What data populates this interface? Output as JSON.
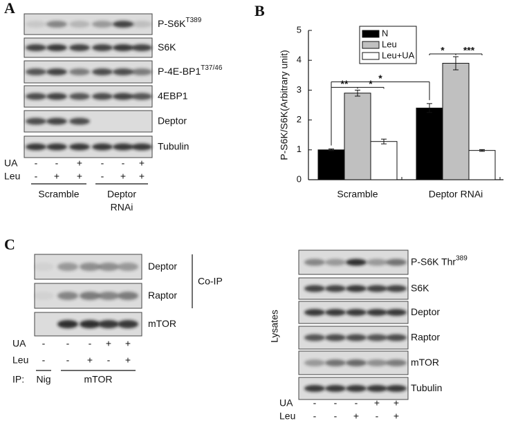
{
  "panel_a": {
    "letter": "A",
    "blots": [
      {
        "name": "P-S6K",
        "sup": "T389"
      },
      {
        "name": "S6K"
      },
      {
        "name": "P-4E-BP1",
        "sup": "T37/46"
      },
      {
        "name": "4EBP1"
      },
      {
        "name": "Deptor"
      },
      {
        "name": "Tubulin"
      }
    ],
    "treatments": [
      {
        "name": "UA",
        "signs": [
          "-",
          "-",
          "+",
          "-",
          "-",
          "+"
        ]
      },
      {
        "name": "Leu",
        "signs": [
          "-",
          "+",
          "+",
          "-",
          "+",
          "+"
        ]
      }
    ],
    "groups": [
      {
        "lines": [
          "Scramble"
        ]
      },
      {
        "lines": [
          "Deptor",
          "RNAi"
        ]
      }
    ]
  },
  "chart_data": {
    "type": "bar",
    "letter": "B",
    "ylabel": "P-S6K/S6K(Arbitrary unit)",
    "categories": [
      "Scramble",
      "Deptor RNAi"
    ],
    "series": [
      {
        "name": "N",
        "color": "#000000",
        "values": [
          1,
          2.4
        ],
        "errors": [
          0.03,
          0.15
        ]
      },
      {
        "name": "Leu",
        "color": "#c0c0c0",
        "values": [
          2.9,
          3.9
        ],
        "errors": [
          0.1,
          0.22
        ]
      },
      {
        "name": "Leu+UA",
        "color": "#ffffff",
        "values": [
          1.28,
          0.98
        ],
        "errors": [
          0.08,
          0.03
        ]
      }
    ],
    "ylim": [
      0,
      5
    ],
    "yticks": [
      0,
      1,
      2,
      3,
      4,
      5
    ],
    "legend": "upper left",
    "significance": [
      {
        "label": "**"
      },
      {
        "label": "*"
      },
      {
        "label": "*"
      },
      {
        "label": "*"
      },
      {
        "label": "***"
      }
    ]
  },
  "panel_c": {
    "letter": "C",
    "co_ip": {
      "blots": [
        {
          "name": "Deptor"
        },
        {
          "name": "Raptor"
        },
        {
          "name": "mTOR"
        }
      ],
      "bracket": "Co-IP",
      "treatments": [
        {
          "name": "UA",
          "signs": [
            "-",
            "-",
            "-",
            "+",
            "+"
          ]
        },
        {
          "name": "Leu",
          "signs": [
            "-",
            "-",
            "+",
            "-",
            "+"
          ]
        }
      ],
      "ip": {
        "label": "IP:",
        "groups": [
          "Nig",
          "mTOR"
        ]
      }
    },
    "lysates": {
      "title": "Lysates",
      "blots": [
        {
          "name": "P-S6K Thr",
          "sup": "389"
        },
        {
          "name": "S6K"
        },
        {
          "name": "Deptor"
        },
        {
          "name": "Raptor"
        },
        {
          "name": "mTOR"
        },
        {
          "name": "Tubulin"
        }
      ],
      "treatments": [
        {
          "name": "UA",
          "signs": [
            "-",
            "-",
            "-",
            "+",
            "+"
          ]
        },
        {
          "name": "Leu",
          "signs": [
            "-",
            "-",
            "+",
            "-",
            "+"
          ]
        }
      ]
    }
  }
}
